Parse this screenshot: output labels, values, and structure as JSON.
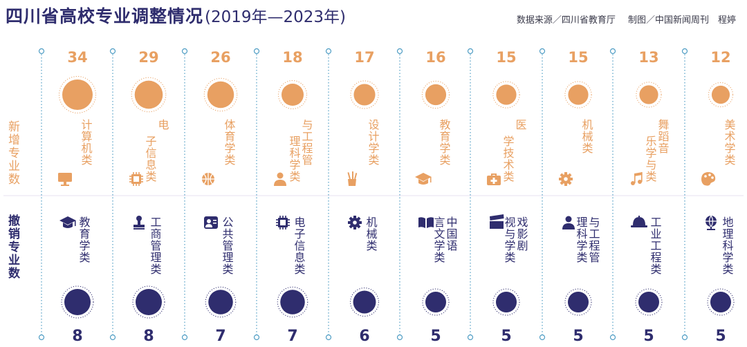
{
  "header": {
    "title": "四川省高校专业调整情况",
    "subtitle": "(2019年—2023年)",
    "source": "数据来源／四川省教育厅",
    "credit": "制图／中国新闻周刊　程婷"
  },
  "chart_data": {
    "type": "bubble-columns",
    "colors": {
      "added": "#e8a062",
      "removed": "#2f2d6e",
      "line": "#4f9dc4"
    },
    "added": {
      "label": "新增专业数",
      "categories": [
        "计算机类",
        "电子信息类",
        "体育学类",
        "管理科学与工程类",
        "设计学类",
        "教育学类",
        "医学技术类",
        "机械类",
        "音乐与舞蹈学类",
        "美术学类"
      ],
      "display": [
        "计算机类",
        "电子信息类",
        "体育学类",
        "与工程管理科学类",
        "设计学类",
        "教育学类",
        "医学技术类",
        "机械类",
        "舞蹈音乐学与类",
        "美术学类"
      ],
      "icons": [
        "monitor-icon",
        "chip-icon",
        "basketball-icon",
        "person-icon",
        "pencil-cup-icon",
        "graduation-cap-icon",
        "medical-kit-icon",
        "gear-icon",
        "music-note-icon",
        "palette-icon"
      ],
      "values": [
        34,
        29,
        26,
        18,
        17,
        16,
        15,
        15,
        13,
        12
      ]
    },
    "removed": {
      "label": "撤销专业数",
      "categories": [
        "教育学类",
        "工商管理类",
        "公共管理类",
        "电子信息类",
        "机械类",
        "中国语言文学类",
        "戏剧与影视学类",
        "管理科学与工程类",
        "工业工程类",
        "地理科学类"
      ],
      "display": [
        "教育学类",
        "工商管理类",
        "公共管理类",
        "电子信息类",
        "机械类",
        "中国语言文学类",
        "戏影剧视与学类",
        "与工程管理科学类",
        "工业工程类",
        "地理科学类"
      ],
      "icons": [
        "graduation-cap-icon",
        "stamp-icon",
        "id-card-icon",
        "chip-icon",
        "gear-icon",
        "book-icon",
        "clapperboard-icon",
        "person-icon",
        "helmet-icon",
        "globe-icon"
      ],
      "values": [
        8,
        8,
        7,
        7,
        6,
        5,
        5,
        5,
        5,
        5
      ]
    }
  }
}
